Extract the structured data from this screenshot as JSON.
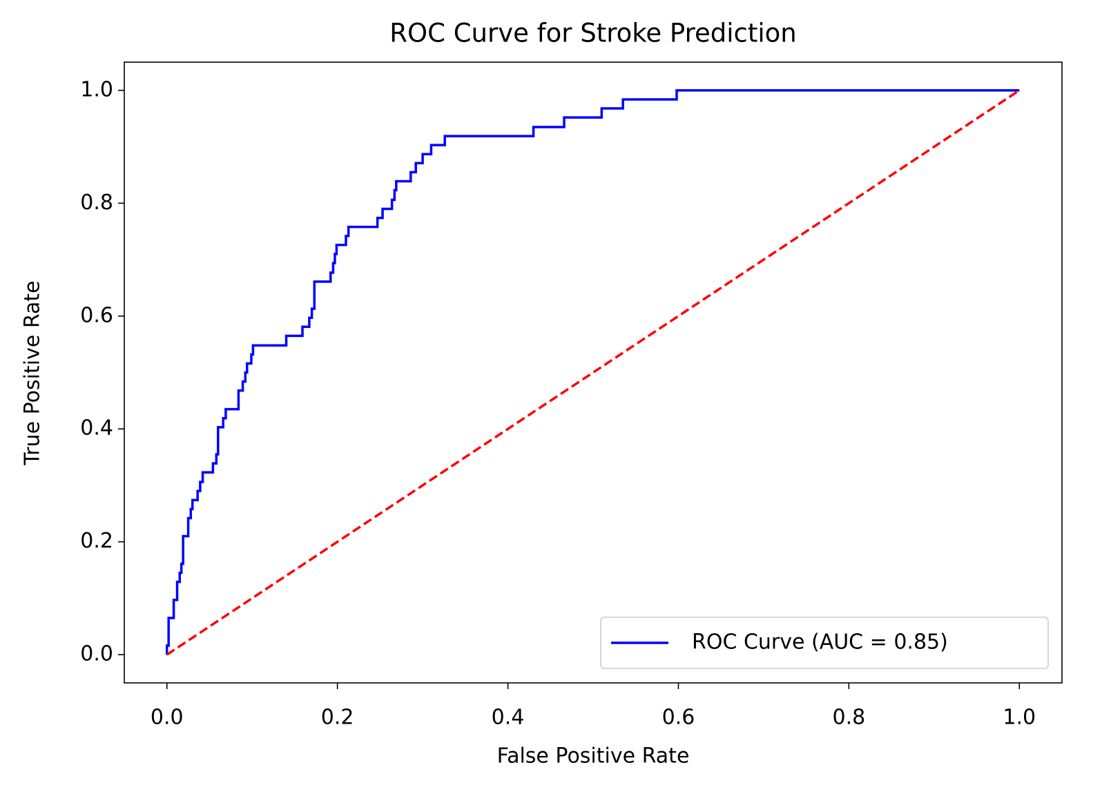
{
  "chart_data": {
    "type": "line",
    "title": "ROC Curve for Stroke Prediction",
    "x_label": "False Positive Rate",
    "y_label": "True Positive Rate",
    "xlim": [
      -0.05,
      1.05
    ],
    "ylim": [
      -0.05,
      1.05
    ],
    "xticks": [
      {
        "value": 0,
        "label": "0.0"
      },
      {
        "value": 0.2,
        "label": "0.2"
      },
      {
        "value": 0.4,
        "label": "0.4"
      },
      {
        "value": 0.6,
        "label": "0.6"
      },
      {
        "value": 0.8,
        "label": "0.8"
      },
      {
        "value": 1,
        "label": "1.0"
      }
    ],
    "yticks": [
      {
        "value": 0,
        "label": "0.0"
      },
      {
        "value": 0.2,
        "label": "0.2"
      },
      {
        "value": 0.4,
        "label": "0.4"
      },
      {
        "value": 0.6,
        "label": "0.6"
      },
      {
        "value": 0.8,
        "label": "0.8"
      },
      {
        "value": 1,
        "label": "1.0"
      }
    ],
    "grid": false,
    "legend": "lower right",
    "series": [
      {
        "name": "ROC Curve (AUC = 0.85)",
        "color": "#0000ff",
        "dashed": false,
        "x": [
          0,
          0,
          0.002,
          0.002,
          0.008,
          0.008,
          0.012,
          0.012,
          0.015,
          0.015,
          0.017,
          0.017,
          0.019,
          0.019,
          0.025,
          0.025,
          0.028,
          0.028,
          0.03,
          0.03,
          0.036,
          0.036,
          0.039,
          0.039,
          0.042,
          0.042,
          0.054,
          0.054,
          0.058,
          0.058,
          0.06,
          0.06,
          0.066,
          0.066,
          0.069,
          0.069,
          0.084,
          0.084,
          0.089,
          0.089,
          0.092,
          0.092,
          0.094,
          0.094,
          0.099,
          0.099,
          0.101,
          0.101,
          0.14,
          0.14,
          0.159,
          0.159,
          0.167,
          0.167,
          0.17,
          0.17,
          0.173,
          0.173,
          0.192,
          0.192,
          0.195,
          0.195,
          0.197,
          0.197,
          0.199,
          0.199,
          0.21,
          0.21,
          0.213,
          0.213,
          0.247,
          0.247,
          0.253,
          0.253,
          0.264,
          0.264,
          0.267,
          0.267,
          0.269,
          0.269,
          0.286,
          0.286,
          0.292,
          0.292,
          0.3,
          0.3,
          0.31,
          0.31,
          0.326,
          0.326,
          0.43,
          0.43,
          0.466,
          0.466,
          0.51,
          0.51,
          0.535,
          0.535,
          0.598,
          0.598,
          1.0
        ],
        "values": [
          0,
          0.016,
          0.016,
          0.065,
          0.065,
          0.097,
          0.097,
          0.129,
          0.129,
          0.145,
          0.145,
          0.161,
          0.161,
          0.21,
          0.21,
          0.242,
          0.242,
          0.258,
          0.258,
          0.274,
          0.274,
          0.29,
          0.29,
          0.306,
          0.306,
          0.323,
          0.323,
          0.339,
          0.339,
          0.355,
          0.355,
          0.403,
          0.403,
          0.419,
          0.419,
          0.435,
          0.435,
          0.468,
          0.468,
          0.484,
          0.484,
          0.5,
          0.5,
          0.516,
          0.516,
          0.532,
          0.532,
          0.548,
          0.548,
          0.565,
          0.565,
          0.581,
          0.581,
          0.597,
          0.597,
          0.613,
          0.613,
          0.661,
          0.661,
          0.677,
          0.677,
          0.694,
          0.694,
          0.71,
          0.71,
          0.726,
          0.726,
          0.742,
          0.742,
          0.758,
          0.758,
          0.774,
          0.774,
          0.79,
          0.79,
          0.806,
          0.806,
          0.823,
          0.823,
          0.839,
          0.839,
          0.855,
          0.855,
          0.871,
          0.871,
          0.887,
          0.887,
          0.903,
          0.903,
          0.919,
          0.919,
          0.935,
          0.935,
          0.952,
          0.952,
          0.968,
          0.968,
          0.984,
          0.984,
          1.0,
          1.0
        ]
      },
      {
        "color": "#ff0000",
        "dashed": true,
        "x": [
          0,
          1
        ],
        "values": [
          0,
          1
        ]
      }
    ]
  }
}
